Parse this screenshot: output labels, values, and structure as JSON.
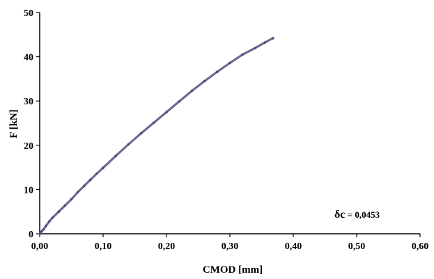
{
  "chart_data": {
    "type": "line",
    "xlabel": "CMOD [mm]",
    "ylabel": "F [kN]",
    "xlim": [
      0,
      0.6
    ],
    "ylim": [
      0,
      50
    ],
    "x_ticks": [
      "0,00",
      "0,10",
      "0,20",
      "0,30",
      "0,40",
      "0,50",
      "0,60"
    ],
    "y_ticks": [
      "0",
      "10",
      "20",
      "30",
      "40",
      "50"
    ],
    "grid": false,
    "series": [
      {
        "color": "#6b6a93",
        "points": [
          [
            0.0,
            0.0
          ],
          [
            0.003,
            0.5
          ],
          [
            0.006,
            1.0
          ],
          [
            0.01,
            1.8
          ],
          [
            0.015,
            2.8
          ],
          [
            0.02,
            3.6
          ],
          [
            0.03,
            5.0
          ],
          [
            0.04,
            6.4
          ],
          [
            0.05,
            7.8
          ],
          [
            0.06,
            9.4
          ],
          [
            0.07,
            10.8
          ],
          [
            0.08,
            12.2
          ],
          [
            0.09,
            13.6
          ],
          [
            0.1,
            14.9
          ],
          [
            0.12,
            17.6
          ],
          [
            0.14,
            20.2
          ],
          [
            0.16,
            22.7
          ],
          [
            0.18,
            25.1
          ],
          [
            0.2,
            27.5
          ],
          [
            0.22,
            29.9
          ],
          [
            0.24,
            32.3
          ],
          [
            0.26,
            34.5
          ],
          [
            0.28,
            36.6
          ],
          [
            0.3,
            38.6
          ],
          [
            0.32,
            40.5
          ],
          [
            0.34,
            42.0
          ],
          [
            0.355,
            43.2
          ],
          [
            0.368,
            44.2
          ]
        ]
      }
    ],
    "annotation": {
      "symbol": "δc",
      "text": " = 0,0453"
    }
  }
}
